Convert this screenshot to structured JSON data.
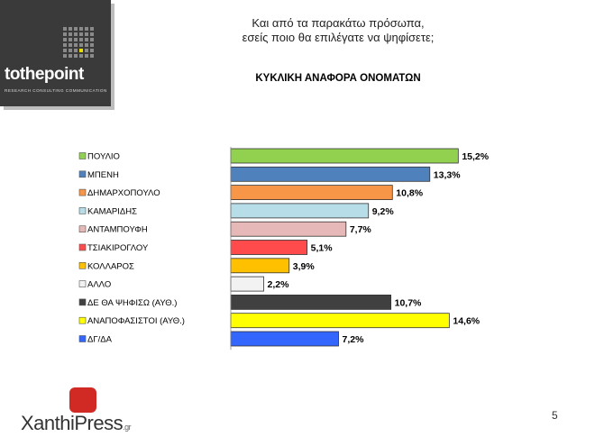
{
  "brand": {
    "name": "tothepoint",
    "tagline": "RESEARCH CONSULTING COMMUNICATION"
  },
  "header": {
    "question_line1": "Και από τα παρακάτω πρόσωπα,",
    "question_line2": "εσείς ποιο θα επιλέγατε να ψηφίσετε;",
    "subtitle": "ΚΥΚΛΙΚΗ ΑΝΑΦΟΡΑ ΟΝΟΜΑΤΩΝ"
  },
  "chart_data": {
    "type": "bar",
    "orientation": "horizontal",
    "title": "",
    "xlabel": "",
    "ylabel": "",
    "value_suffix": "%",
    "legend_position": "left",
    "grid": false,
    "categories": [
      "ΠΟΥΛΙΟ",
      "ΜΠΕΝΗ",
      "ΔΗΜΑΡΧΟΠΟΥΛΟ",
      "ΚΑΜΑΡΙΔΗΣ",
      "ΑΝΤΑΜΠΟΥΦΗ",
      "ΤΣΙΑΚΙΡΟΓΛΟΥ",
      "ΚΟΛΛΑΡΟΣ",
      "ΑΛΛΟ",
      "ΔΕ ΘΑ ΨΗΦΙΣΩ (ΑΥΘ.)",
      "ΑΝΑΠΟΦΑΣΙΣΤΟΙ (ΑΥΘ.)",
      "ΔΓ/ΔΑ"
    ],
    "values": [
      15.2,
      13.3,
      10.8,
      9.2,
      7.7,
      5.1,
      3.9,
      2.2,
      10.7,
      14.6,
      7.2
    ],
    "labels": [
      "15,2%",
      "13,3%",
      "10,8%",
      "9,2%",
      "7,7%",
      "5,1%",
      "3,9%",
      "2,2%",
      "10,7%",
      "14,6%",
      "7,2%"
    ],
    "colors": [
      "#92d050",
      "#4f81bd",
      "#f79646",
      "#b7dde8",
      "#e6b9b8",
      "#ff4b4b",
      "#ffc000",
      "#f2f2f2",
      "#404040",
      "#ffff00",
      "#3366ff"
    ]
  },
  "footer": {
    "brand": "XanthiPress",
    "tld": ".gr",
    "page_number": "5"
  }
}
